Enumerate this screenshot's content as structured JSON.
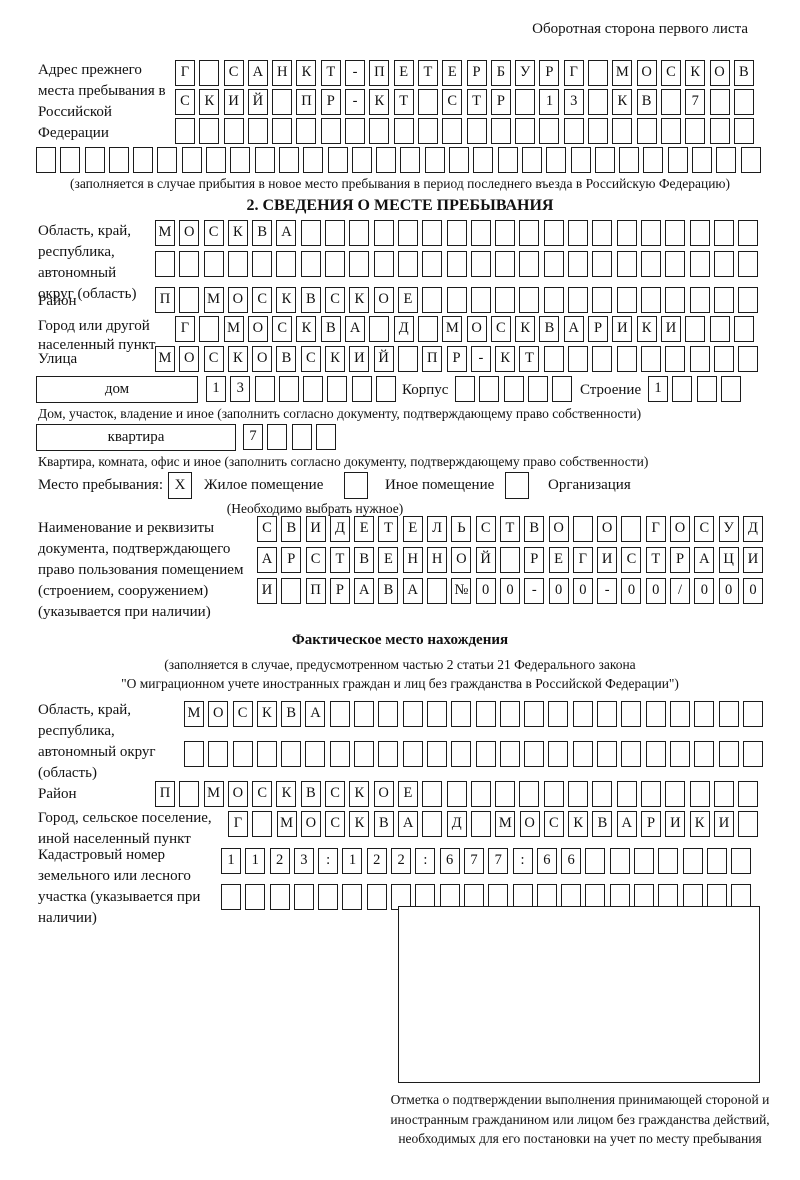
{
  "colors": {
    "ink": "#1c1c1c"
  },
  "header": {
    "note": "Оборотная сторона первого листа"
  },
  "prev_address": {
    "label": "Адрес прежнего места пребывания в Российской Федерации",
    "row1": "Г САНКТ-ПЕТЕРБУРГ МОСКОВ",
    "row2": "СКИЙ ПР-КТ СТР 13 КВ 7  ",
    "row3": "                        ",
    "row4": "                              ",
    "caption": "(заполняется в случае прибытия в новое место пребывания в период последнего въезда в Российскую Федерацию)"
  },
  "section2": {
    "title": "2. СВЕДЕНИЯ О МЕСТЕ ПРЕБЫВАНИЯ",
    "region": {
      "label": "Область, край, республика, автономный округ (область)",
      "row1": "МОСКВА                   ",
      "row2": "                         "
    },
    "district": {
      "label": "Район",
      "row1": "П МОСКВСКОЕ              "
    },
    "city": {
      "label": "Город или другой населенный пункт",
      "row1": "Г МОСКВА Д МОСКВАРИКИ   "
    },
    "street": {
      "label": "Улица",
      "row1": "МОСКОВСКИЙ ПР-КТ         "
    },
    "house": {
      "box_label": "дом",
      "cells": "13      ",
      "korpus_label": "Корпус",
      "korpus_cells": "     ",
      "stroenie_label": "Строение",
      "stroenie_cells": "1   ",
      "caption": "Дом, участок, владение и иное (заполнить согласно документу, подтверждающему право собственности)"
    },
    "apartment": {
      "box_label": "квартира",
      "cells": "7   ",
      "caption": "Квартира, комната, офис и иное (заполнить согласно документу, подтверждающему право собственности)"
    },
    "place_type": {
      "label": "Место пребывания:",
      "opt1_cell": "X",
      "opt1_label": "Жилое помещение",
      "opt2_cell": " ",
      "opt2_label": "Иное помещение",
      "opt3_cell": " ",
      "opt3_label": "Организация",
      "hint": "(Необходимо выбрать нужное)"
    },
    "doc": {
      "label": "Наименование и реквизиты документа, подтверждающего право пользования помещением (строением, сооружением) (указывается при наличии)",
      "row1": "СВИДЕТЕЛЬСТВО О ГОСУД",
      "row2": "АРСТВЕННОЙ РЕГИСТРАЦИ",
      "row3": "И ПРАВА №00-00-00/000"
    }
  },
  "actual_location": {
    "title": "Фактическое место нахождения",
    "caption1": "(заполняется в случае, предусмотренном частью 2 статьи 21 Федерального закона",
    "caption2": "\"О миграционном учете иностранных граждан и лиц без гражданства в Российской Федерации\")",
    "region": {
      "label": "Область, край, республика, автономный округ (область)",
      "row1": "МОСКВА                  ",
      "row2": "                        "
    },
    "district": {
      "label": "Район",
      "row1": "П МОСКВСКОЕ              "
    },
    "city": {
      "label": "Город, сельское поселение, иной населенный пункт",
      "row1": "Г МОСКВА Д МОСКВАРИКИ "
    },
    "cadastral": {
      "label": "Кадастровый номер земельного или лесного участка (указывается при наличии)",
      "row1": "1123:122:677:66       ",
      "row2": "                      "
    }
  },
  "stamp": {
    "caption": "Отметка о подтверждении выполнения принимающей стороной и иностранным гражданином или лицом без гражданства действий, необходимых для его постановки на учет по месту пребывания"
  }
}
